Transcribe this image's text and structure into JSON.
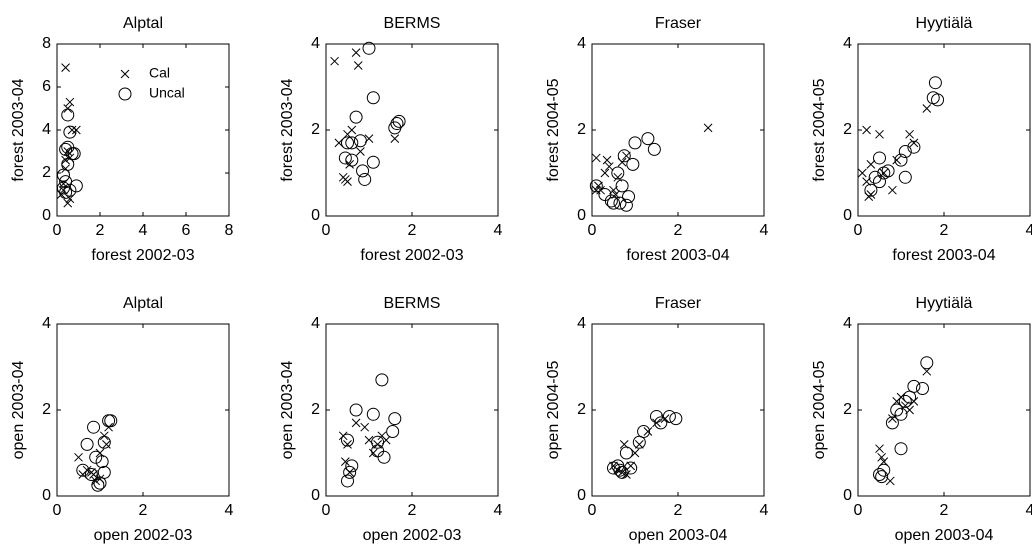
{
  "chart_data": [
    {
      "type": "scatter",
      "title": "Alptal",
      "xlabel": "forest 2002-03",
      "ylabel": "forest 2003-04",
      "xlim": [
        0,
        8
      ],
      "ylim": [
        0,
        8
      ],
      "xticks": [
        0,
        2,
        4,
        6,
        8
      ],
      "yticks": [
        0,
        2,
        4,
        6,
        8
      ],
      "legend": "upper right",
      "series": [
        {
          "name": "Cal",
          "marker": "x",
          "color": "#000000",
          "x": [
            0.4,
            0.5,
            0.6,
            0.4,
            0.7,
            0.3,
            0.5,
            0.2,
            0.6,
            0.4,
            0.9,
            0.3,
            0.5,
            0.6
          ],
          "y": [
            6.9,
            5.0,
            5.3,
            2.6,
            4.0,
            1.2,
            3.0,
            1.0,
            0.8,
            2.2,
            4.0,
            1.5,
            0.6,
            2.7
          ]
        },
        {
          "name": "Uncal",
          "marker": "o",
          "color": "#000000",
          "x": [
            0.5,
            0.6,
            0.4,
            0.7,
            0.5,
            0.3,
            0.9,
            0.4,
            0.6,
            0.5,
            0.8,
            0.4,
            0.3
          ],
          "y": [
            4.7,
            3.9,
            3.1,
            2.9,
            2.4,
            1.9,
            1.4,
            1.6,
            1.2,
            3.2,
            2.9,
            1.1,
            1.3
          ]
        }
      ]
    },
    {
      "type": "scatter",
      "title": "BERMS",
      "xlabel": "forest 2002-03",
      "ylabel": "forest 2003-04",
      "xlim": [
        0,
        4
      ],
      "ylim": [
        0,
        4
      ],
      "xticks": [
        0,
        2,
        4
      ],
      "yticks": [
        0,
        2,
        4
      ],
      "series": [
        {
          "name": "Cal",
          "marker": "x",
          "color": "#000000",
          "x": [
            0.2,
            0.7,
            0.75,
            0.5,
            0.3,
            0.4,
            0.45,
            0.5,
            0.6,
            0.8,
            1.0,
            1.6,
            0.55
          ],
          "y": [
            3.6,
            3.8,
            3.5,
            1.9,
            1.7,
            0.9,
            0.85,
            0.8,
            2.0,
            1.5,
            1.8,
            1.8,
            1.2
          ]
        },
        {
          "name": "Uncal",
          "marker": "o",
          "color": "#000000",
          "x": [
            1.0,
            1.1,
            0.7,
            0.8,
            0.5,
            0.45,
            0.6,
            0.85,
            1.1,
            1.6,
            1.65,
            1.7,
            0.9,
            0.6
          ],
          "y": [
            3.9,
            2.75,
            2.3,
            1.75,
            1.7,
            1.35,
            1.3,
            1.05,
            1.25,
            2.05,
            2.15,
            2.2,
            0.85,
            1.7
          ]
        }
      ]
    },
    {
      "type": "scatter",
      "title": "Fraser",
      "xlabel": "forest 2003-04",
      "ylabel": "forest 2004-05",
      "xlim": [
        0,
        4
      ],
      "ylim": [
        0,
        4
      ],
      "xticks": [
        0,
        2,
        4
      ],
      "yticks": [
        0,
        2,
        4
      ],
      "series": [
        {
          "name": "Cal",
          "marker": "x",
          "color": "#000000",
          "x": [
            0.1,
            0.15,
            0.1,
            0.3,
            0.35,
            0.4,
            0.6,
            0.7,
            0.55,
            0.8,
            2.7,
            0.2,
            0.5
          ],
          "y": [
            1.35,
            0.7,
            0.6,
            1.0,
            1.3,
            1.15,
            0.9,
            1.25,
            0.5,
            1.4,
            2.05,
            0.6,
            0.6
          ]
        },
        {
          "name": "Uncal",
          "marker": "o",
          "color": "#000000",
          "x": [
            0.1,
            0.3,
            0.45,
            0.5,
            0.65,
            0.7,
            0.75,
            0.85,
            0.95,
            1.0,
            1.3,
            1.45,
            0.6,
            0.8
          ],
          "y": [
            0.7,
            0.5,
            0.35,
            0.3,
            0.3,
            0.7,
            1.4,
            0.45,
            1.2,
            1.7,
            1.8,
            1.55,
            1.0,
            0.25
          ]
        }
      ]
    },
    {
      "type": "scatter",
      "title": "Hyytiälä",
      "xlabel": "forest 2003-04",
      "ylabel": "forest 2004-05",
      "xlim": [
        0,
        4
      ],
      "ylim": [
        0,
        4
      ],
      "xticks": [
        0,
        2,
        4
      ],
      "yticks": [
        0,
        2,
        4
      ],
      "series": [
        {
          "name": "Cal",
          "marker": "x",
          "color": "#000000",
          "x": [
            0.2,
            0.5,
            0.1,
            0.3,
            0.25,
            0.3,
            0.6,
            0.9,
            1.2,
            1.3,
            1.6,
            0.2,
            0.8
          ],
          "y": [
            2.0,
            1.9,
            1.0,
            0.5,
            0.45,
            1.2,
            1.0,
            1.3,
            1.9,
            1.7,
            2.5,
            0.8,
            0.6
          ]
        },
        {
          "name": "Uncal",
          "marker": "o",
          "color": "#000000",
          "x": [
            1.8,
            1.75,
            1.85,
            0.5,
            0.4,
            0.6,
            0.7,
            1.0,
            1.1,
            1.3,
            1.1,
            0.5,
            0.3
          ],
          "y": [
            3.1,
            2.75,
            2.7,
            1.35,
            0.9,
            1.0,
            1.05,
            1.3,
            1.5,
            1.6,
            0.9,
            0.8,
            0.6
          ]
        }
      ]
    },
    {
      "type": "scatter",
      "title": "Alptal",
      "xlabel": "open 2002-03",
      "ylabel": "open 2003-04",
      "xlim": [
        0,
        4
      ],
      "ylim": [
        0,
        4
      ],
      "xticks": [
        0,
        2,
        4
      ],
      "yticks": [
        0,
        2,
        4
      ],
      "series": [
        {
          "name": "Cal",
          "marker": "x",
          "color": "#000000",
          "x": [
            0.5,
            0.6,
            0.8,
            0.9,
            1.0,
            1.1,
            1.2,
            0.7,
            1.0,
            1.15,
            0.85
          ],
          "y": [
            0.9,
            0.5,
            0.55,
            0.35,
            1.0,
            1.4,
            1.6,
            0.6,
            0.4,
            1.2,
            0.5
          ]
        },
        {
          "name": "Uncal",
          "marker": "o",
          "color": "#000000",
          "x": [
            0.6,
            0.8,
            0.85,
            1.0,
            1.1,
            1.2,
            1.25,
            1.1,
            0.9,
            0.95,
            0.7,
            1.05
          ],
          "y": [
            0.6,
            0.5,
            1.6,
            0.3,
            0.55,
            1.75,
            1.75,
            1.25,
            0.9,
            0.25,
            1.2,
            0.8
          ]
        }
      ]
    },
    {
      "type": "scatter",
      "title": "BERMS",
      "xlabel": "open 2002-03",
      "ylabel": "open 2003-04",
      "xlim": [
        0,
        4
      ],
      "ylim": [
        0,
        4
      ],
      "xticks": [
        0,
        2,
        4
      ],
      "yticks": [
        0,
        2,
        4
      ],
      "series": [
        {
          "name": "Cal",
          "marker": "x",
          "color": "#000000",
          "x": [
            0.4,
            0.5,
            0.45,
            0.7,
            0.9,
            1.0,
            1.2,
            1.3,
            1.4,
            0.55,
            1.1
          ],
          "y": [
            1.4,
            1.2,
            0.8,
            1.7,
            1.6,
            1.3,
            1.2,
            1.4,
            1.3,
            0.55,
            1.0
          ]
        },
        {
          "name": "Uncal",
          "marker": "o",
          "color": "#000000",
          "x": [
            0.5,
            0.55,
            0.7,
            0.5,
            0.6,
            1.3,
            1.1,
            1.2,
            1.35,
            1.55,
            1.6,
            1.2
          ],
          "y": [
            1.3,
            0.55,
            2.0,
            0.35,
            0.7,
            2.7,
            1.9,
            1.25,
            0.9,
            1.5,
            1.8,
            1.05
          ]
        }
      ]
    },
    {
      "type": "scatter",
      "title": "Fraser",
      "xlabel": "open 2003-04",
      "ylabel": "open 2004-05",
      "xlim": [
        0,
        4
      ],
      "ylim": [
        0,
        4
      ],
      "xticks": [
        0,
        2,
        4
      ],
      "yticks": [
        0,
        2,
        4
      ],
      "series": [
        {
          "name": "Cal",
          "marker": "x",
          "color": "#000000",
          "x": [
            0.5,
            0.6,
            0.7,
            0.75,
            0.8,
            0.9,
            1.0,
            1.1,
            1.3,
            1.5,
            1.7
          ],
          "y": [
            0.7,
            0.6,
            0.55,
            1.2,
            0.5,
            0.7,
            1.0,
            1.2,
            1.5,
            1.7,
            1.8
          ]
        },
        {
          "name": "Uncal",
          "marker": "o",
          "color": "#000000",
          "x": [
            0.5,
            0.6,
            0.65,
            0.8,
            0.9,
            1.1,
            1.2,
            1.5,
            1.6,
            1.8,
            1.95,
            0.7
          ],
          "y": [
            0.65,
            0.7,
            0.6,
            1.0,
            0.65,
            1.25,
            1.5,
            1.85,
            1.7,
            1.85,
            1.8,
            0.55
          ]
        }
      ]
    },
    {
      "type": "scatter",
      "title": "Hyytiälä",
      "xlabel": "open 2003-04",
      "ylabel": "open 2004-05",
      "xlim": [
        0,
        4
      ],
      "ylim": [
        0,
        4
      ],
      "xticks": [
        0,
        2,
        4
      ],
      "yticks": [
        0,
        2,
        4
      ],
      "series": [
        {
          "name": "Cal",
          "marker": "x",
          "color": "#000000",
          "x": [
            0.5,
            0.55,
            0.6,
            0.75,
            0.9,
            1.0,
            1.1,
            1.2,
            1.3,
            1.6,
            0.8
          ],
          "y": [
            1.1,
            0.9,
            0.8,
            0.35,
            2.2,
            2.3,
            2.1,
            2.0,
            2.2,
            2.9,
            1.8
          ]
        },
        {
          "name": "Uncal",
          "marker": "o",
          "color": "#000000",
          "x": [
            0.5,
            0.55,
            0.8,
            0.9,
            1.0,
            1.1,
            1.2,
            1.3,
            1.5,
            1.6,
            1.0,
            0.6
          ],
          "y": [
            0.5,
            0.45,
            1.7,
            2.0,
            1.9,
            2.2,
            2.3,
            2.55,
            2.5,
            3.1,
            1.1,
            0.6
          ]
        }
      ]
    }
  ]
}
